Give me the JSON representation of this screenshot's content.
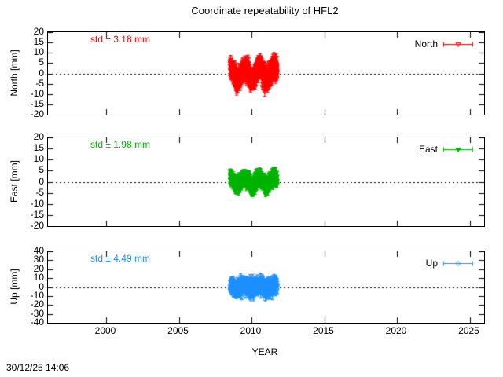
{
  "title": "Coordinate repeatability of HFL2",
  "timestamp": "30/12/25 14:06",
  "xlabel": "YEAR",
  "background": "#ffffff",
  "axis_color": "#000000",
  "chart_data": [
    {
      "type": "scatter",
      "component": "North",
      "ylabel": "North [mm]",
      "annotation": "std ± 3.18 mm",
      "std_mm": 3.18,
      "color": "#ff0000",
      "marker": "triangle-down-open",
      "legend_label": "North",
      "legend_position": "top-right",
      "xlim": [
        1996,
        2026
      ],
      "ylim": [
        -20,
        20
      ],
      "xticks": [
        2000,
        2005,
        2010,
        2015,
        2020,
        2025
      ],
      "yticks": [
        20,
        15,
        10,
        5,
        0,
        -5,
        -10,
        -15,
        -20
      ],
      "zero_line": true,
      "grid": false,
      "series": {
        "x_start": 2008.55,
        "x_end": 2011.75,
        "n_points": 1150,
        "mean_mm": 0,
        "seasonal_amplitude_mm": 3.0,
        "noise_std_mm": 2.2,
        "error_bar_mm": 1.4,
        "seed": 101
      }
    },
    {
      "type": "scatter",
      "component": "East",
      "ylabel": "East [mm]",
      "annotation": "std ± 1.98 mm",
      "std_mm": 1.98,
      "color": "#00b400",
      "marker": "triangle-down-filled",
      "legend_label": "East",
      "legend_position": "top-right",
      "xlim": [
        1996,
        2026
      ],
      "ylim": [
        -20,
        20
      ],
      "xticks": [
        2000,
        2005,
        2010,
        2015,
        2020,
        2025
      ],
      "yticks": [
        20,
        15,
        10,
        5,
        0,
        -5,
        -10,
        -15,
        -20
      ],
      "zero_line": true,
      "grid": false,
      "series": {
        "x_start": 2008.55,
        "x_end": 2011.75,
        "n_points": 1150,
        "mean_mm": 0,
        "seasonal_amplitude_mm": 2.0,
        "noise_std_mm": 1.5,
        "error_bar_mm": 1.0,
        "seed": 202
      }
    },
    {
      "type": "scatter",
      "component": "Up",
      "ylabel": "Up [mm]",
      "annotation": "std ± 4.49 mm",
      "std_mm": 4.49,
      "color": "#1e90ff",
      "marker": "diamond-open",
      "legend_label": "Up",
      "legend_position": "top-right",
      "xlim": [
        1996,
        2026
      ],
      "ylim": [
        -40,
        40
      ],
      "xticks": [
        2000,
        2005,
        2010,
        2015,
        2020,
        2025
      ],
      "yticks": [
        40,
        30,
        20,
        10,
        0,
        -10,
        -20,
        -30,
        -40
      ],
      "zero_line": true,
      "grid": false,
      "series": {
        "x_start": 2008.55,
        "x_end": 2011.75,
        "n_points": 1150,
        "mean_mm": 0,
        "seasonal_amplitude_mm": 2.0,
        "noise_std_mm": 4.4,
        "error_bar_mm": 2.2,
        "seed": 303
      }
    }
  ]
}
